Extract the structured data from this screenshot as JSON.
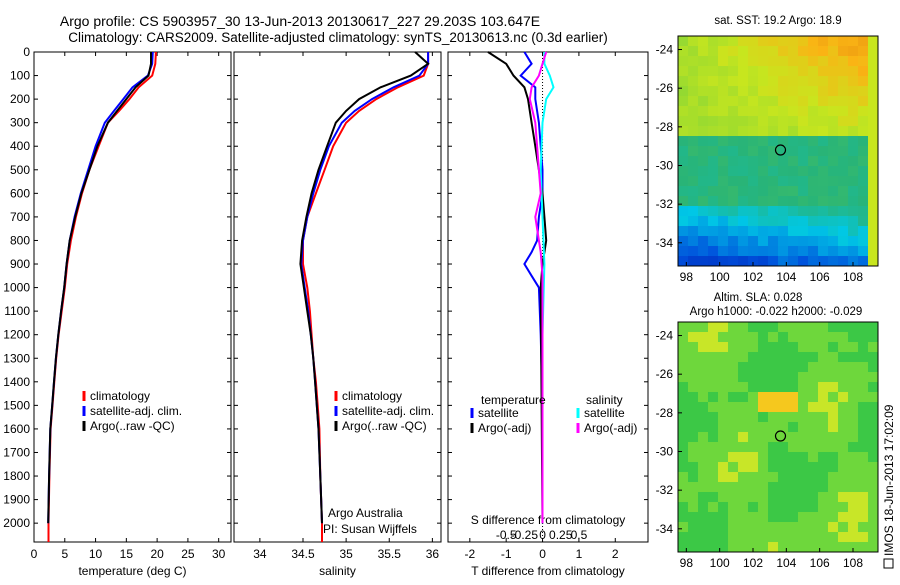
{
  "title_line1": "Argo profile: CS 5903957_30 13-Jun-2013 20130617_227 29.203S 103.647E",
  "title_line2": "Climatology: CARS2009. Satellite-adjusted climatology: synTS_20130613.nc (0.3d earlier)",
  "side_text": "IMOS 18-Jun-2013 17:02:09",
  "chart_data": [
    {
      "type": "line",
      "name": "temperature",
      "xlabel": "temperature (deg C)",
      "xlim": [
        0,
        32
      ],
      "xticks": [
        0,
        5,
        10,
        15,
        20,
        25,
        30
      ],
      "xtick_labels": [
        "0",
        "5",
        "10",
        "15",
        "20",
        "25",
        "30"
      ],
      "ylim": [
        0,
        2080
      ],
      "yticks": [
        0,
        100,
        200,
        300,
        400,
        500,
        600,
        700,
        800,
        900,
        1000,
        1100,
        1200,
        1300,
        1400,
        1500,
        1600,
        1700,
        1800,
        1900,
        2000
      ],
      "ytick_labels": [
        "0",
        "100",
        "200",
        "300",
        "400",
        "500",
        "600",
        "700",
        "800",
        "900",
        "1000",
        "1100",
        "1200",
        "1300",
        "1400",
        "1500",
        "1600",
        "1700",
        "1800",
        "1900",
        "2000"
      ],
      "y_reversed": true,
      "legend": [
        "climatology",
        "satellite-adj. clim.",
        "Argo(..raw -QC)"
      ],
      "series": [
        {
          "color": "#ff0000",
          "x": [
            19.8,
            19.7,
            19.2,
            17.0,
            15.5,
            13.8,
            12.0,
            10.5,
            9.0,
            7.8,
            6.8,
            6.0,
            5.4,
            5.0,
            4.5,
            4.0,
            3.6,
            3.3,
            3.0,
            2.7,
            2.5,
            2.35,
            2.35
          ],
          "y": [
            0,
            50,
            100,
            150,
            200,
            250,
            300,
            400,
            500,
            600,
            700,
            800,
            900,
            1000,
            1100,
            1200,
            1300,
            1400,
            1500,
            1600,
            1800,
            2000,
            2080
          ]
        },
        {
          "color": "#0000ff",
          "x": [
            19.3,
            19.2,
            18.5,
            16.0,
            14.5,
            13.0,
            11.5,
            10.0,
            8.8,
            7.6,
            6.6,
            5.8,
            5.3,
            4.9,
            4.4,
            3.95,
            3.55,
            3.25,
            2.95,
            2.65,
            2.45,
            2.3
          ],
          "y": [
            0,
            50,
            100,
            150,
            200,
            250,
            300,
            400,
            500,
            600,
            700,
            800,
            900,
            1000,
            1100,
            1200,
            1300,
            1400,
            1500,
            1600,
            1800,
            2000
          ]
        },
        {
          "color": "#000000",
          "x": [
            19.0,
            19.0,
            18.6,
            16.5,
            15.0,
            13.5,
            12.0,
            10.3,
            9.0,
            7.7,
            6.7,
            5.8,
            5.3,
            4.9,
            4.4,
            3.95,
            3.55,
            3.25,
            2.95,
            2.65,
            2.45,
            2.3
          ],
          "y": [
            0,
            50,
            100,
            150,
            200,
            250,
            300,
            400,
            500,
            600,
            700,
            800,
            900,
            1000,
            1100,
            1200,
            1300,
            1400,
            1500,
            1600,
            1800,
            2000
          ]
        }
      ]
    },
    {
      "type": "line",
      "name": "salinity",
      "xlabel": "salinity",
      "xlim": [
        33.7,
        36.1
      ],
      "xticks": [
        34,
        34.5,
        35,
        35.5,
        36
      ],
      "xtick_labels": [
        "34",
        "34.5",
        "35",
        "35.5",
        "36"
      ],
      "ylim": [
        0,
        2080
      ],
      "yticks": [
        0,
        100,
        200,
        300,
        400,
        500,
        600,
        700,
        800,
        900,
        1000,
        1100,
        1200,
        1300,
        1400,
        1500,
        1600,
        1700,
        1800,
        1900,
        2000
      ],
      "y_reversed": true,
      "legend": [
        "climatology",
        "satellite-adj. clim.",
        "Argo(..raw -QC)"
      ],
      "annotation": [
        "Argo Australia",
        "PI: Susan Wijffels"
      ],
      "series": [
        {
          "color": "#ff0000",
          "x": [
            35.95,
            35.95,
            35.9,
            35.6,
            35.35,
            35.15,
            35.0,
            34.85,
            34.75,
            34.65,
            34.55,
            34.5,
            34.5,
            34.55,
            34.58,
            34.6,
            34.62,
            34.65,
            34.67,
            34.69,
            34.7,
            34.72,
            34.72
          ],
          "y": [
            0,
            50,
            100,
            150,
            200,
            250,
            300,
            400,
            500,
            600,
            700,
            800,
            900,
            1000,
            1100,
            1200,
            1300,
            1400,
            1500,
            1600,
            1800,
            2000,
            2080
          ]
        },
        {
          "color": "#0000ff",
          "x": [
            35.95,
            35.95,
            35.85,
            35.55,
            35.3,
            35.1,
            34.95,
            34.8,
            34.7,
            34.62,
            34.55,
            34.5,
            34.48,
            34.52,
            34.56,
            34.59,
            34.62,
            34.64,
            34.66,
            34.68,
            34.7,
            34.72
          ],
          "y": [
            0,
            50,
            100,
            150,
            200,
            250,
            300,
            400,
            500,
            600,
            700,
            800,
            900,
            1000,
            1100,
            1200,
            1300,
            1400,
            1500,
            1600,
            1800,
            2000
          ]
        },
        {
          "color": "#000000",
          "x": [
            35.8,
            35.95,
            35.75,
            35.4,
            35.15,
            35.0,
            34.88,
            34.78,
            34.68,
            34.6,
            34.54,
            34.49,
            34.47,
            34.51,
            34.55,
            34.59,
            34.62,
            34.64,
            34.66,
            34.68,
            34.7,
            34.72
          ],
          "y": [
            0,
            50,
            100,
            150,
            200,
            250,
            300,
            400,
            500,
            600,
            700,
            800,
            900,
            1000,
            1100,
            1200,
            1300,
            1400,
            1500,
            1600,
            1800,
            2000
          ]
        }
      ]
    },
    {
      "type": "line",
      "name": "differences",
      "xlabel": "T difference from climatology",
      "xlabel_top": "S difference from climatology",
      "xlim": [
        -2.6,
        2.9
      ],
      "xticks": [
        -2,
        -1,
        0,
        1,
        2
      ],
      "xtick_labels": [
        "-2",
        "-1",
        "0",
        "1",
        "2"
      ],
      "sticks": [
        -1.0,
        -0.5,
        0,
        0.5,
        1.0
      ],
      "stick_labels": [
        "-0.5",
        "-0.25",
        "0",
        "0.25",
        "0.5"
      ],
      "ylim": [
        0,
        2080
      ],
      "yticks": [
        0,
        100,
        200,
        300,
        400,
        500,
        600,
        700,
        800,
        900,
        1000,
        1100,
        1200,
        1300,
        1400,
        1500,
        1600,
        1700,
        1800,
        1900,
        2000
      ],
      "y_reversed": true,
      "legend_temperature": "temperature",
      "legend_salinity": "salinity",
      "legend": [
        "satellite",
        "Argo(-adj)",
        "satellite",
        "Argo(-adj)"
      ],
      "series": [
        {
          "color": "#0000ff",
          "x": [
            -0.5,
            -0.3,
            -0.6,
            -0.2,
            -0.2,
            -0.1,
            -0.05,
            0.0,
            0.0,
            -0.1,
            -0.15,
            -0.3,
            -0.5,
            -0.3,
            -0.1,
            -0.05,
            0,
            0,
            0
          ],
          "y": [
            0,
            50,
            100,
            150,
            200,
            300,
            400,
            500,
            600,
            700,
            800,
            850,
            900,
            950,
            1000,
            1200,
            1500,
            1800,
            2000
          ]
        },
        {
          "color": "#000000",
          "x": [
            -1.5,
            -1.0,
            -0.8,
            -0.5,
            -0.4,
            -0.3,
            -0.2,
            -0.1,
            0.0,
            0.05,
            0.1,
            0.05,
            0,
            -0.05,
            0
          ],
          "y": [
            0,
            50,
            100,
            150,
            200,
            300,
            400,
            500,
            600,
            700,
            800,
            850,
            900,
            1000,
            2000
          ]
        },
        {
          "color": "#00ffff",
          "x": [
            0.05,
            0.05,
            0.2,
            0.3,
            0.1,
            0.0,
            -0.05,
            0.0,
            0.05,
            0,
            0,
            0
          ],
          "y": [
            0,
            50,
            100,
            150,
            200,
            300,
            500,
            700,
            900,
            1200,
            1600,
            2000
          ]
        },
        {
          "color": "#ff00ff",
          "x": [
            0.1,
            0.0,
            -0.1,
            -0.3,
            -0.35,
            -0.2,
            -0.15,
            -0.1,
            -0.05,
            -0.2,
            -0.05,
            0.0,
            0,
            0
          ],
          "y": [
            0,
            50,
            100,
            150,
            200,
            300,
            400,
            500,
            600,
            700,
            850,
            950,
            1200,
            2000
          ]
        }
      ]
    },
    {
      "type": "heatmap",
      "name": "sst-map",
      "title": "sat. SST: 19.2 Argo: 18.9",
      "xlim": [
        97.5,
        109.5
      ],
      "ylim": [
        -35.2,
        -23.3
      ],
      "xticks": [
        98,
        100,
        102,
        104,
        106,
        108
      ],
      "yticks": [
        -34,
        -32,
        -30,
        -28,
        -26,
        -24
      ],
      "ytick_labels": [
        "-34",
        "-32",
        "-30",
        "-28",
        "-26",
        "-24"
      ],
      "marker": [
        103.65,
        -29.2
      ]
    },
    {
      "type": "heatmap",
      "name": "sla-map",
      "title": "Altim. SLA: 0.028",
      "subtitle": "Argo h1000: -0.022 h2000: -0.029",
      "xlim": [
        97.5,
        109.5
      ],
      "ylim": [
        -35.2,
        -23.3
      ],
      "xticks": [
        98,
        100,
        102,
        104,
        106,
        108
      ],
      "yticks": [
        -34,
        -32,
        -30,
        -28,
        -26,
        -24
      ],
      "ytick_labels": [
        "-34",
        "-32",
        "-30",
        "-28",
        "-26",
        "-24"
      ],
      "marker": [
        103.65,
        -29.2
      ]
    }
  ]
}
